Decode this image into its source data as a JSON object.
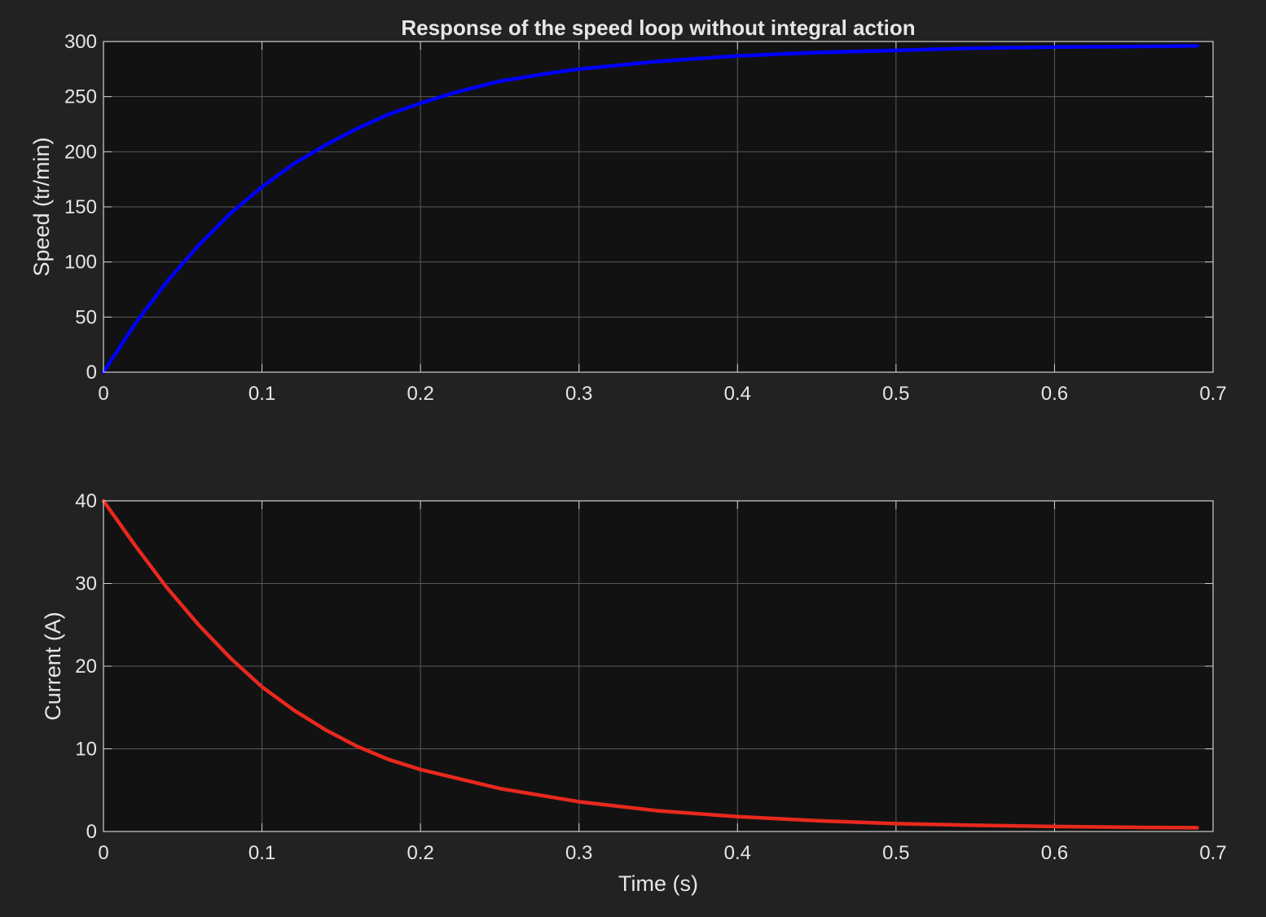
{
  "chart_data": [
    {
      "type": "line",
      "title": "Response of the speed loop without integral action",
      "xlabel": "",
      "ylabel": "Speed (tr/min)",
      "xlim": [
        0,
        0.7
      ],
      "ylim": [
        0,
        300
      ],
      "xticks": [
        "0",
        "0.1",
        "0.2",
        "0.3",
        "0.4",
        "0.5",
        "0.6",
        "0.7"
      ],
      "yticks": [
        "0",
        "50",
        "100",
        "150",
        "200",
        "250",
        "300"
      ],
      "grid": true,
      "series": [
        {
          "color": "#0000ff",
          "x": [
            0,
            0.02,
            0.04,
            0.06,
            0.08,
            0.1,
            0.12,
            0.14,
            0.16,
            0.18,
            0.2,
            0.22,
            0.25,
            0.28,
            0.3,
            0.35,
            0.4,
            0.45,
            0.5,
            0.55,
            0.6,
            0.65,
            0.69
          ],
          "y": [
            0,
            44,
            82,
            115,
            144,
            168,
            189,
            206,
            221,
            234,
            244,
            253,
            264,
            271,
            275,
            282,
            287,
            290,
            292,
            294,
            295,
            295.5,
            296
          ]
        }
      ]
    },
    {
      "type": "line",
      "title": "",
      "xlabel": "Time (s)",
      "ylabel": "Current (A)",
      "xlim": [
        0,
        0.7
      ],
      "ylim": [
        0,
        40
      ],
      "xticks": [
        "0",
        "0.1",
        "0.2",
        "0.3",
        "0.4",
        "0.5",
        "0.6",
        "0.7"
      ],
      "yticks": [
        "0",
        "10",
        "20",
        "30",
        "40"
      ],
      "grid": true,
      "series": [
        {
          "color": "#e8281e",
          "x": [
            0,
            0.02,
            0.04,
            0.06,
            0.08,
            0.1,
            0.12,
            0.14,
            0.16,
            0.18,
            0.2,
            0.25,
            0.3,
            0.35,
            0.4,
            0.45,
            0.5,
            0.55,
            0.6,
            0.65,
            0.69
          ],
          "y": [
            40,
            34.6,
            29.5,
            25.0,
            21.0,
            17.5,
            14.7,
            12.3,
            10.3,
            8.7,
            7.5,
            5.2,
            3.6,
            2.5,
            1.8,
            1.3,
            0.95,
            0.75,
            0.6,
            0.5,
            0.45
          ]
        }
      ]
    }
  ]
}
